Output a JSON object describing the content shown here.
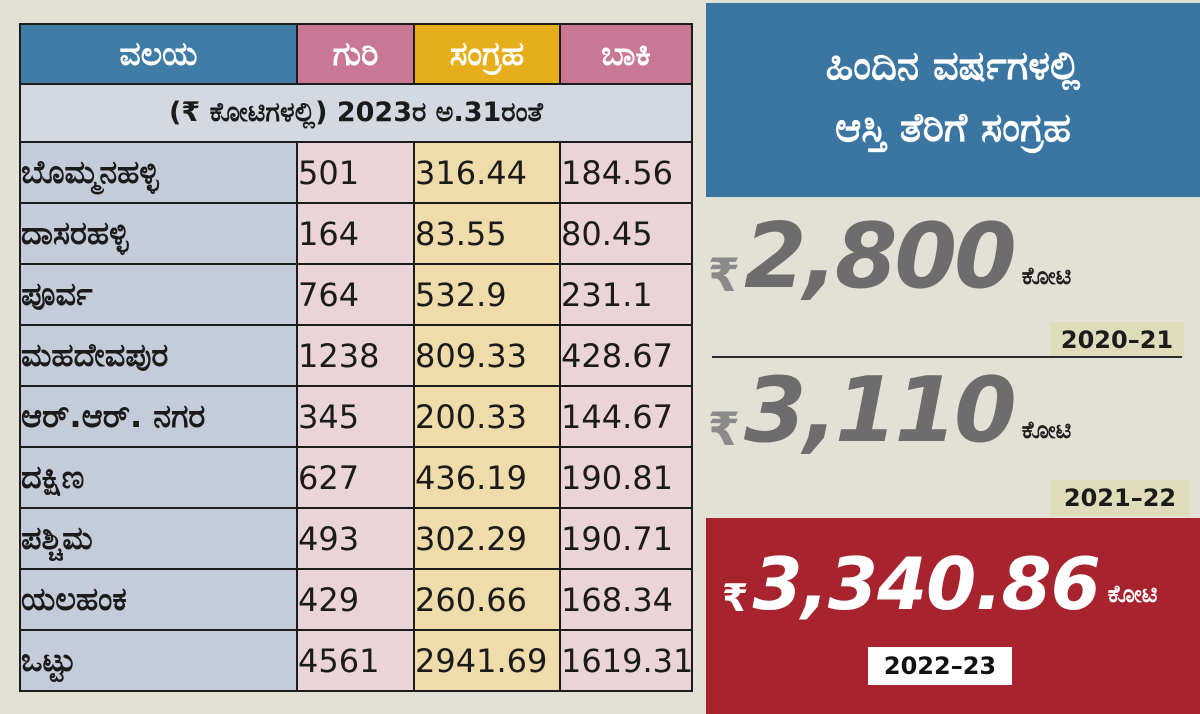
{
  "table": {
    "headers": {
      "zone": "ವಲಯ",
      "target": "ಗುರಿ",
      "collected": "ಸಂಗ್ರಹ",
      "balance": "ಬಾಕಿ"
    },
    "unit_note": "(₹ ಕೋಟಿಗಳಲ್ಲಿ) 2023ರ ಅ.31ರಂತೆ",
    "rows": [
      {
        "zone": "ಬೊಮ್ಮನಹಳ್ಳಿ",
        "target": "501",
        "collected": "316.44",
        "balance": "184.56"
      },
      {
        "zone": "ದಾಸರಹಳ್ಳಿ",
        "target": "164",
        "collected": "83.55",
        "balance": "80.45"
      },
      {
        "zone": "ಪೂರ್ವ",
        "target": "764",
        "collected": "532.9",
        "balance": "231.1"
      },
      {
        "zone": "ಮಹದೇವಪುರ",
        "target": "1238",
        "collected": "809.33",
        "balance": "428.67"
      },
      {
        "zone": "ಆರ್.ಆರ್. ನಗರ",
        "target": "345",
        "collected": "200.33",
        "balance": "144.67"
      },
      {
        "zone": "ದಕ್ಷಿಣ",
        "target": "627",
        "collected": "436.19",
        "balance": "190.81"
      },
      {
        "zone": "ಪಶ್ಚಿಮ",
        "target": "493",
        "collected": "302.29",
        "balance": "190.71"
      },
      {
        "zone": "ಯಲಹಂಕ",
        "target": "429",
        "collected": "260.66",
        "balance": "168.34"
      },
      {
        "zone": "ಒಟ್ಟು",
        "target": "4561",
        "collected": "2941.69",
        "balance": "1619.31"
      }
    ]
  },
  "panel": {
    "title_line1": "ಹಿಂದಿನ ವರ್ಷಗಳಲ್ಲಿ",
    "title_line2": "ಆಸ್ತಿ ತೆರಿಗೆ ಸಂಗ್ರಹ",
    "rupee": "₹",
    "crore_label": "ಕೋಟಿ",
    "years": [
      {
        "amount": "2,800",
        "year": "2020–21"
      },
      {
        "amount": "3,110",
        "year": "2021–22"
      },
      {
        "amount": "3,340.86",
        "year": "2022–23"
      }
    ]
  },
  "colors": {
    "header_blue": "#3f7ca6",
    "header_pink": "#c87894",
    "header_yellow": "#e7ae1c",
    "highlight_red": "#a7242e"
  }
}
